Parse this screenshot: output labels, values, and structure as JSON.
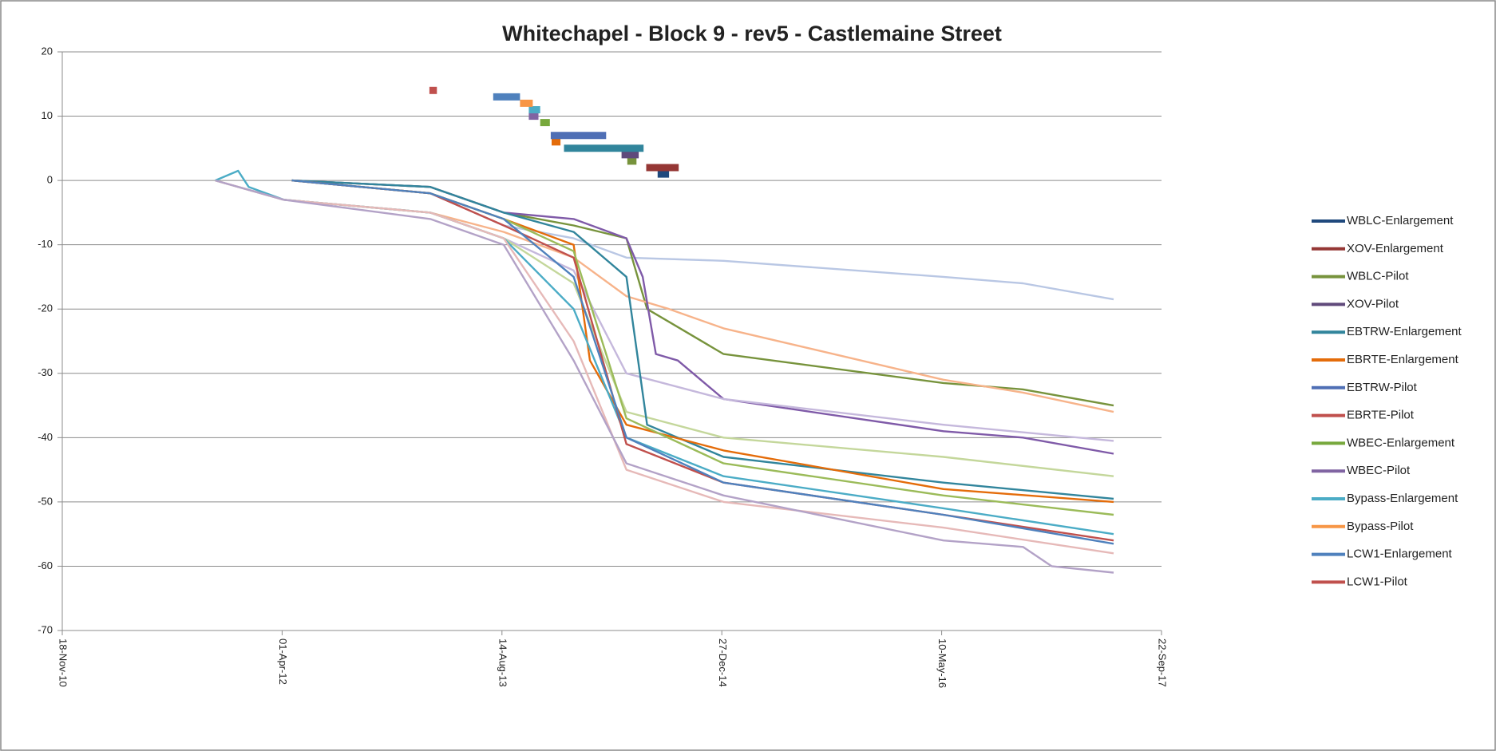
{
  "chart_data": {
    "type": "line",
    "title": "Whitechapel - Block 9 - rev5 - Castlemaine Street",
    "xlim": [
      40500,
      43000
    ],
    "xticks": [
      {
        "value": 40500,
        "label": "18-Nov-10"
      },
      {
        "value": 41000,
        "label": "01-Apr-12"
      },
      {
        "value": 41500,
        "label": "14-Aug-13"
      },
      {
        "value": 42000,
        "label": "27-Dec-14"
      },
      {
        "value": 42500,
        "label": "10-May-16"
      },
      {
        "value": 43000,
        "label": "22-Sep-17"
      }
    ],
    "ylim": [
      -70,
      20
    ],
    "yticks": [
      -70,
      -60,
      -50,
      -40,
      -30,
      -20,
      -10,
      0,
      10,
      20
    ],
    "grid": true,
    "legend": "right",
    "series": [
      {
        "name": "WBLC-Enlargement",
        "color": "#1f497d",
        "x": [
          41854,
          41880
        ],
        "values": [
          1,
          1
        ]
      },
      {
        "name": "XOV-Enlargement",
        "color": "#953735",
        "x": [
          41828,
          41902
        ],
        "values": [
          2,
          2
        ]
      },
      {
        "name": "WBLC-Pilot",
        "color": "#77933c",
        "x": [
          41785,
          41806
        ],
        "values": [
          3,
          3
        ]
      },
      {
        "name": "XOV-Pilot",
        "color": "#604a7b",
        "x": [
          41772,
          41811
        ],
        "values": [
          4,
          4
        ]
      },
      {
        "name": "EBTRW-Enlargement",
        "color": "#31859c",
        "x": [
          41641,
          41822
        ],
        "values": [
          5,
          5
        ]
      },
      {
        "name": "EBRTE-Enlargement",
        "color": "#e46c0a",
        "x": [
          41613,
          41633
        ],
        "values": [
          6,
          6
        ]
      },
      {
        "name": "EBTRW-Pilot",
        "color": "#4f6fb5",
        "x": [
          41611,
          41737
        ],
        "values": [
          7,
          7
        ]
      },
      {
        "name": "EBRTE-Pilot",
        "color": "#c0504d",
        "x": [],
        "values": []
      },
      {
        "name": "WBEC-Enlargement",
        "color": "#77a83c",
        "x": [
          41587,
          41609
        ],
        "values": [
          9,
          9
        ]
      },
      {
        "name": "WBEC-Pilot",
        "color": "#8064a2",
        "x": [
          41561,
          41583
        ],
        "values": [
          10,
          10
        ]
      },
      {
        "name": "Bypass-Enlargement",
        "color": "#4bacc6",
        "x": [
          41561,
          41587
        ],
        "values": [
          11,
          11
        ]
      },
      {
        "name": "Bypass-Pilot",
        "color": "#f79646",
        "x": [
          41541,
          41570
        ],
        "values": [
          12,
          12
        ]
      },
      {
        "name": "LCW1-Enlargement",
        "color": "#4f81bd",
        "x": [
          41480,
          41541
        ],
        "values": [
          13,
          13
        ]
      },
      {
        "name": "LCW1-Pilot",
        "color": "#c0504d",
        "x": [
          41335,
          41352
        ],
        "values": [
          14,
          14
        ]
      }
    ],
    "monitoring": [
      {
        "color": "#b9c7e4",
        "x": [
          41022,
          41337,
          41504,
          41663,
          41783,
          42004,
          42504,
          42685,
          42891
        ],
        "values": [
          0,
          -2,
          -7,
          -9,
          -12,
          -12.5,
          -15,
          -16,
          -18.5
        ]
      },
      {
        "color": "#77933c",
        "x": [
          41022,
          41337,
          41504,
          41663,
          41783,
          41800,
          41830,
          41880,
          42004,
          42504,
          42685,
          42891
        ],
        "values": [
          0,
          -1,
          -5,
          -7,
          -9,
          -13,
          -20,
          -22,
          -27,
          -31.5,
          -32.5,
          -35
        ]
      },
      {
        "color": "#f7b38a",
        "x": [
          40848,
          41004,
          41337,
          41504,
          41663,
          41783,
          41880,
          42004,
          42504,
          42685,
          42891
        ],
        "values": [
          0,
          -3,
          -5,
          -8,
          -12,
          -18,
          -20,
          -23,
          -31,
          -33,
          -36
        ]
      },
      {
        "color": "#7f5aa8",
        "x": [
          41022,
          41337,
          41504,
          41663,
          41783,
          41820,
          41850,
          41900,
          42004,
          42504,
          42685,
          42891
        ],
        "values": [
          0,
          -1,
          -5,
          -6,
          -9,
          -15,
          -27,
          -28,
          -34,
          -39,
          -40,
          -42.5
        ]
      },
      {
        "color": "#c5b8dc",
        "x": [
          40848,
          41004,
          41337,
          41504,
          41663,
          41783,
          42004,
          42504,
          42891
        ],
        "values": [
          0,
          -3,
          -5,
          -9,
          -14,
          -30,
          -34,
          -38,
          -40.5
        ]
      },
      {
        "color": "#c4d79b",
        "x": [
          40848,
          41004,
          41337,
          41504,
          41663,
          41783,
          42004,
          42504,
          42891
        ],
        "values": [
          0,
          -3,
          -5,
          -9,
          -16,
          -36,
          -40,
          -43,
          -46
        ]
      },
      {
        "color": "#31859c",
        "x": [
          41022,
          41337,
          41504,
          41663,
          41783,
          41830,
          42004,
          42504,
          42891
        ],
        "values": [
          0,
          -1,
          -5,
          -8,
          -15,
          -38,
          -43,
          -47,
          -49.5
        ]
      },
      {
        "color": "#e46c0a",
        "x": [
          41022,
          41337,
          41504,
          41663,
          41700,
          41783,
          42004,
          42504,
          42891
        ],
        "values": [
          0,
          -2,
          -6,
          -10,
          -28,
          -38,
          -42,
          -48,
          -50
        ]
      },
      {
        "color": "#9bbb59",
        "x": [
          41022,
          41337,
          41504,
          41663,
          41783,
          42004,
          42504,
          42891
        ],
        "values": [
          0,
          -2,
          -6,
          -11,
          -37,
          -44,
          -49,
          -52
        ]
      },
      {
        "color": "#4bacc6",
        "x": [
          40848,
          40900,
          40924,
          41004,
          41337,
          41504,
          41663,
          41783,
          42004,
          42504,
          42891
        ],
        "values": [
          0,
          1.5,
          -1,
          -3,
          -5,
          -9,
          -20,
          -40,
          -46,
          -51,
          -55
        ]
      },
      {
        "color": "#c0504d",
        "x": [
          41022,
          41337,
          41504,
          41663,
          41783,
          42004,
          42504,
          42891
        ],
        "values": [
          0,
          -2,
          -7,
          -12,
          -41,
          -47,
          -52,
          -56
        ]
      },
      {
        "color": "#e6b9b8",
        "x": [
          40848,
          41004,
          41337,
          41504,
          41663,
          41783,
          42004,
          42504,
          42891
        ],
        "values": [
          0,
          -3,
          -5,
          -9,
          -25,
          -45,
          -50,
          -54,
          -58
        ]
      },
      {
        "color": "#b3a2c7",
        "x": [
          40848,
          41004,
          41337,
          41504,
          41663,
          41783,
          42004,
          42504,
          42685,
          42750,
          42891
        ],
        "values": [
          0,
          -3,
          -6,
          -10,
          -28,
          -44,
          -49,
          -56,
          -57,
          -60,
          -61
        ]
      },
      {
        "color": "#4f81bd",
        "x": [
          41022,
          41337,
          41504,
          41663,
          41783,
          42004,
          42504,
          42891
        ],
        "values": [
          0,
          -2,
          -6,
          -15,
          -40,
          -47,
          -52,
          -56.5
        ]
      }
    ]
  }
}
